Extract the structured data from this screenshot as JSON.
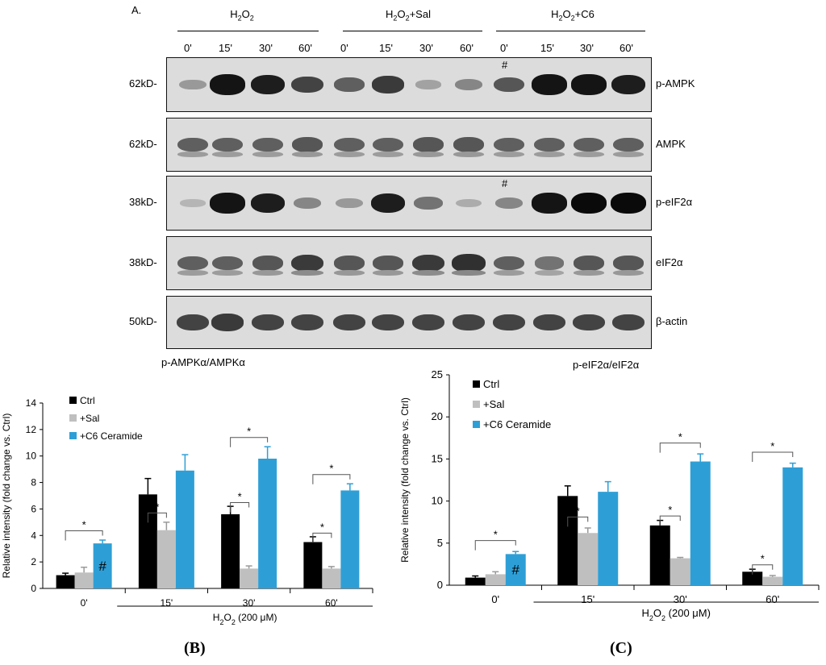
{
  "panel_label": "A.",
  "blot": {
    "groups": [
      {
        "main": "H",
        "sub": "2",
        "main2": "O",
        "sub2": "2",
        "suffix": ""
      },
      {
        "main": "H",
        "sub": "2",
        "main2": "O",
        "sub2": "2",
        "suffix": "+Sal"
      },
      {
        "main": "H",
        "sub": "2",
        "main2": "O",
        "sub2": "2",
        "suffix": "+C6"
      }
    ],
    "lanes": [
      "0'",
      "15'",
      "30'",
      "60'",
      "0'",
      "15'",
      "30'",
      "60'",
      "0'",
      "15'",
      "30'",
      "60'"
    ],
    "rows": [
      {
        "kd": "62kD-",
        "protein": "p-AMPK",
        "mark": "#",
        "intensity": [
          0.25,
          0.95,
          0.9,
          0.7,
          0.55,
          0.75,
          0.2,
          0.35,
          0.6,
          0.95,
          0.95,
          0.9
        ]
      },
      {
        "kd": "62kD-",
        "protein": "AMPK",
        "mark": "",
        "intensity": [
          0.55,
          0.55,
          0.55,
          0.6,
          0.55,
          0.55,
          0.6,
          0.6,
          0.55,
          0.55,
          0.55,
          0.55
        ]
      },
      {
        "kd": "38kD-",
        "protein": "p-eIF2α",
        "mark": "#",
        "intensity": [
          0.1,
          0.95,
          0.9,
          0.35,
          0.25,
          0.9,
          0.45,
          0.15,
          0.35,
          0.95,
          1.0,
          1.0
        ]
      },
      {
        "kd": "38kD-",
        "protein": "eIF2α",
        "mark": "",
        "intensity": [
          0.55,
          0.55,
          0.6,
          0.75,
          0.6,
          0.6,
          0.75,
          0.8,
          0.55,
          0.45,
          0.6,
          0.6
        ]
      },
      {
        "kd": "50kD-",
        "protein": "β-actin",
        "mark": "",
        "intensity": [
          0.7,
          0.75,
          0.7,
          0.7,
          0.7,
          0.7,
          0.7,
          0.7,
          0.7,
          0.7,
          0.7,
          0.7
        ]
      }
    ]
  },
  "chart_data": [
    {
      "type": "bar",
      "title": "p-AMPKα/AMPKα",
      "ylabel": "Relative intensity (fold change vs. Ctrl)",
      "categories": [
        "0'",
        "15'",
        "30'",
        "60'"
      ],
      "ylim": [
        0,
        14
      ],
      "yticks": [
        0,
        2,
        4,
        6,
        8,
        10,
        12,
        14
      ],
      "series": [
        {
          "name": "Ctrl",
          "color": "#000000",
          "values": [
            1.0,
            7.1,
            5.6,
            3.5
          ],
          "errors": [
            0.15,
            1.2,
            0.6,
            0.4
          ]
        },
        {
          "name": "+Sal",
          "color": "#bfbfbf",
          "values": [
            1.2,
            4.4,
            1.5,
            1.5
          ],
          "errors": [
            0.4,
            0.6,
            0.2,
            0.15
          ]
        },
        {
          "name": "+C6 Ceramide",
          "color": "#2e9fd6",
          "values": [
            3.4,
            8.9,
            9.8,
            7.4
          ],
          "errors": [
            0.25,
            1.2,
            0.9,
            0.5
          ]
        }
      ],
      "hash_mark": "#",
      "star": "*",
      "xgroup_label": {
        "pre": "H",
        "sub1": "2",
        "mid": "O",
        "sub2": "2",
        "post": " (200 μM)"
      },
      "caption": "(B)"
    },
    {
      "type": "bar",
      "title": "p-eIF2α/eIF2α",
      "ylabel": "Relative intensity (fold change vs. Ctrl)",
      "categories": [
        "0'",
        "15'",
        "30'",
        "60'"
      ],
      "ylim": [
        0,
        25
      ],
      "yticks": [
        0,
        5,
        10,
        15,
        20,
        25
      ],
      "series": [
        {
          "name": "Ctrl",
          "color": "#000000",
          "values": [
            0.9,
            10.6,
            7.1,
            1.6
          ],
          "errors": [
            0.2,
            1.2,
            0.6,
            0.3
          ]
        },
        {
          "name": "+Sal",
          "color": "#bfbfbf",
          "values": [
            1.3,
            6.2,
            3.2,
            1.0
          ],
          "errors": [
            0.3,
            0.6,
            0.1,
            0.15
          ]
        },
        {
          "name": "+C6 Ceramide",
          "color": "#2e9fd6",
          "values": [
            3.7,
            11.1,
            14.7,
            14.0
          ],
          "errors": [
            0.3,
            1.2,
            0.9,
            0.5
          ]
        }
      ],
      "hash_mark": "#",
      "star": "*",
      "xgroup_label": {
        "pre": "H",
        "sub1": "2",
        "mid": "O",
        "sub2": "2",
        "post": " (200 μM)"
      },
      "caption": "(C)"
    }
  ]
}
